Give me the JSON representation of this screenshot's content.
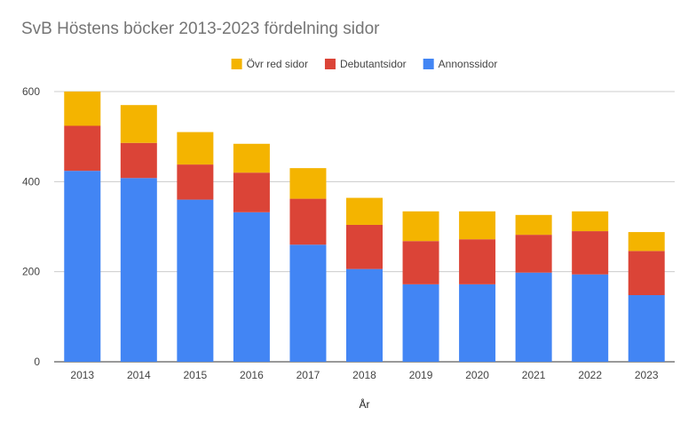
{
  "chart_data": {
    "type": "bar",
    "stacked": true,
    "title": "SvB Höstens böcker 2013-2023 fördelning sidor",
    "xlabel": "År",
    "ylabel": "",
    "ylim": [
      0,
      600
    ],
    "yticks": [
      0,
      200,
      400,
      600
    ],
    "grid": true,
    "legend_position": "top",
    "categories": [
      "2013",
      "2014",
      "2015",
      "2016",
      "2017",
      "2018",
      "2019",
      "2020",
      "2021",
      "2022",
      "2023"
    ],
    "series": [
      {
        "name": "Annonssidor",
        "color": "#4285F4",
        "values": [
          424,
          408,
          360,
          332,
          260,
          206,
          172,
          172,
          198,
          194,
          148
        ]
      },
      {
        "name": "Debutantsidor",
        "color": "#DB4437",
        "values": [
          100,
          78,
          78,
          88,
          102,
          98,
          96,
          100,
          84,
          96,
          98
        ]
      },
      {
        "name": "Övr red sidor",
        "color": "#F4B400",
        "values": [
          76,
          84,
          72,
          64,
          68,
          60,
          66,
          62,
          44,
          44,
          42
        ]
      }
    ],
    "legend_order": [
      "Övr red sidor",
      "Debutantsidor",
      "Annonssidor"
    ]
  }
}
